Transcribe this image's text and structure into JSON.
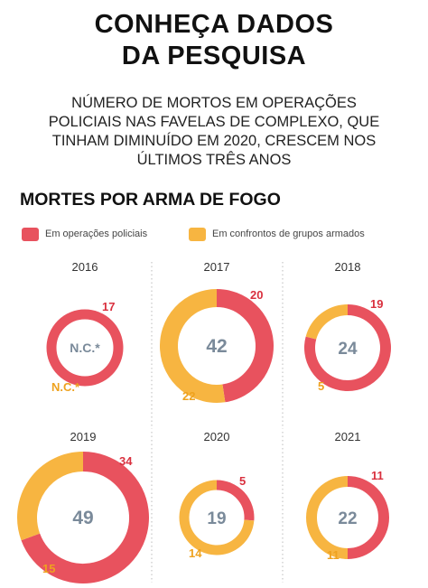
{
  "header": {
    "title_line1": "CONHEÇA DADOS",
    "title_line2": "DA PESQUISA",
    "subtitle_lines": [
      "NÚMERO DE MORTOS EM OPERAÇÕES",
      "POLICIAIS NAS FAVELAS DE COMPLEXO, QUE",
      "TINHAM DIMINUÍDO EM 2020, CRESCEM NOS",
      "ÚLTIMOS TRÊS ANOS"
    ],
    "section_title": "MORTES POR ARMA DE FOGO"
  },
  "colors": {
    "police": "#e8525e",
    "groups": "#f7b541",
    "total_text": "#7a8a9a",
    "grid": "#bbbbbb"
  },
  "chart_data": {
    "type": "donut",
    "legend": [
      {
        "key": "police",
        "label": "Em operações policiais"
      },
      {
        "key": "groups",
        "label": "Em confrontos de grupos armados"
      }
    ],
    "years": [
      {
        "year": "2016",
        "total": "N.C.*",
        "police": 17,
        "groups": "N.C.*"
      },
      {
        "year": "2017",
        "total": 42,
        "police": 20,
        "groups": 22
      },
      {
        "year": "2018",
        "total": 24,
        "police": 19,
        "groups": 5
      },
      {
        "year": "2019",
        "total": 49,
        "police": 34,
        "groups": 15
      },
      {
        "year": "2020",
        "total": 19,
        "police": 5,
        "groups": 14
      },
      {
        "year": "2021",
        "total": 22,
        "police": 11,
        "groups": 11
      }
    ]
  }
}
